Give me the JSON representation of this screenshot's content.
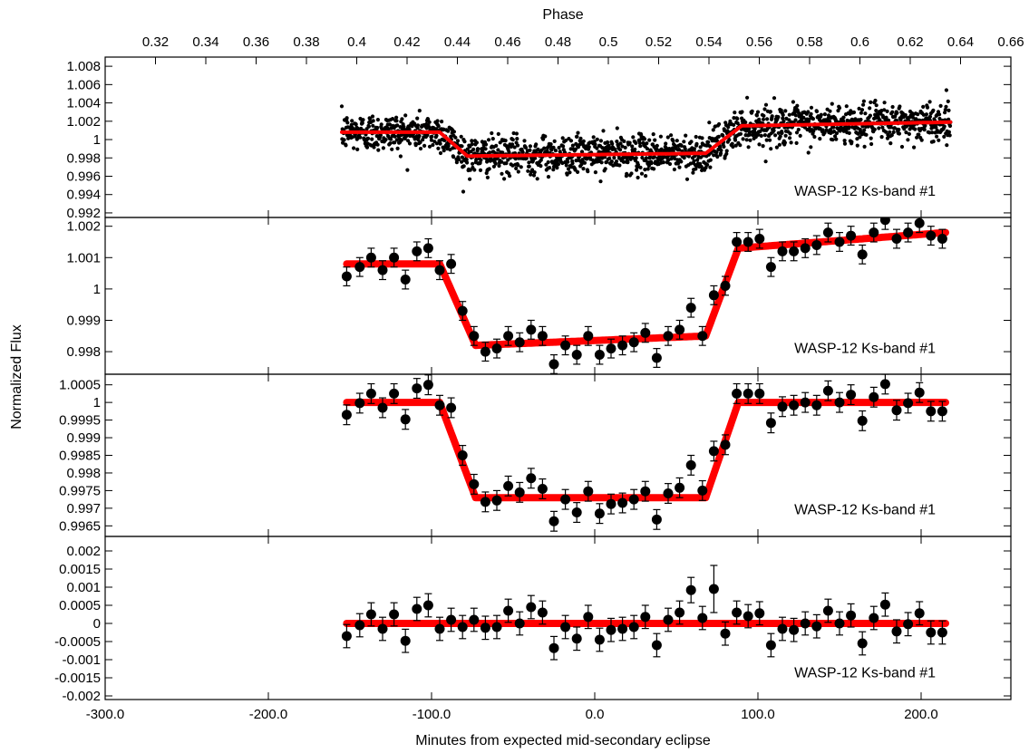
{
  "chart_data": {
    "type": "scatter",
    "x_axis": {
      "label": "Minutes from expected mid-secondary eclipse",
      "range": [
        -300,
        255
      ],
      "ticks": [
        -300,
        -200,
        -100,
        0,
        100,
        200
      ],
      "tick_labels": [
        "-300.0",
        "-200.0",
        "-100.0",
        "0.0",
        "100.0",
        "200.0"
      ]
    },
    "top_axis": {
      "label": "Phase",
      "range": [
        0.3,
        0.66
      ],
      "ticks": [
        0.32,
        0.34,
        0.36,
        0.38,
        0.4,
        0.42,
        0.44,
        0.46,
        0.48,
        0.5,
        0.52,
        0.54,
        0.56,
        0.58,
        0.6,
        0.62,
        0.64,
        0.66
      ],
      "tick_labels": [
        "0.32",
        "0.34",
        "0.36",
        "0.38",
        "0.4",
        "0.42",
        "0.44",
        "0.46",
        "0.48",
        "0.5",
        "0.52",
        "0.54",
        "0.56",
        "0.58",
        "0.6",
        "0.62",
        "0.64",
        "0.66"
      ]
    },
    "ylabel": "Normalized Flux",
    "colors": {
      "model": "#ff0000",
      "points": "#000000"
    },
    "panels": [
      {
        "label": "WASP-12 Ks-band #1",
        "ylim": [
          0.9915,
          1.009
        ],
        "yticks": [
          0.992,
          0.994,
          0.996,
          0.998,
          1.0,
          1.002,
          1.004,
          1.006,
          1.008
        ],
        "ytick_labels": [
          "0.992",
          "0.994",
          "0.996",
          "0.998",
          "1",
          "1.002",
          "1.004",
          "1.006",
          "1.008"
        ],
        "points_kind": "unbinned",
        "n_points": 1800,
        "scatter_sigma": 0.0017,
        "model": {
          "pre_level": 1.0008,
          "bottom_start": 0.9982,
          "bottom_end": 0.9985,
          "post_level": 1.0015,
          "post_end": 1.0019,
          "ingress": [
            -95,
            -78
          ],
          "egress": [
            68,
            90
          ],
          "x_range": [
            -155,
            218
          ]
        }
      },
      {
        "label": "WASP-12 Ks-band #1",
        "ylim": [
          0.99728,
          1.00228
        ],
        "yticks": [
          0.998,
          0.999,
          1.0,
          1.001,
          1.002
        ],
        "ytick_labels": [
          "0.998",
          "0.999",
          "1",
          "1.001",
          "1.002"
        ],
        "points_kind": "binned",
        "points": [
          [
            -152,
            1.0004,
            0.0003
          ],
          [
            -144,
            1.0007,
            0.0003
          ],
          [
            -137,
            1.001,
            0.0003
          ],
          [
            -130,
            1.0006,
            0.0003
          ],
          [
            -123,
            1.001,
            0.0003
          ],
          [
            -116,
            1.0003,
            0.0003
          ],
          [
            -109,
            1.0012,
            0.0003
          ],
          [
            -102,
            1.0013,
            0.0003
          ],
          [
            -95,
            1.0006,
            0.0003
          ],
          [
            -88,
            1.0008,
            0.0003
          ],
          [
            -81,
            0.9993,
            0.0003
          ],
          [
            -74,
            0.9985,
            0.0003
          ],
          [
            -67,
            0.998,
            0.0003
          ],
          [
            -60,
            0.9981,
            0.0003
          ],
          [
            -53,
            0.9985,
            0.0003
          ],
          [
            -46,
            0.9983,
            0.0003
          ],
          [
            -39,
            0.9987,
            0.0003
          ],
          [
            -32,
            0.9985,
            0.0003
          ],
          [
            -25,
            0.9976,
            0.0003
          ],
          [
            -18,
            0.9982,
            0.0003
          ],
          [
            -11,
            0.9979,
            0.0003
          ],
          [
            -4,
            0.9985,
            0.0003
          ],
          [
            3,
            0.9979,
            0.0003
          ],
          [
            10,
            0.9981,
            0.0003
          ],
          [
            17,
            0.9982,
            0.0003
          ],
          [
            24,
            0.9983,
            0.0003
          ],
          [
            31,
            0.9986,
            0.0003
          ],
          [
            38,
            0.9978,
            0.0003
          ],
          [
            45,
            0.9985,
            0.0003
          ],
          [
            52,
            0.9987,
            0.0003
          ],
          [
            59,
            0.9994,
            0.0003
          ],
          [
            66,
            0.9985,
            0.0003
          ],
          [
            73,
            0.9998,
            0.0003
          ],
          [
            80,
            1.0001,
            0.0003
          ],
          [
            87,
            1.0015,
            0.0003
          ],
          [
            94,
            1.0015,
            0.0003
          ],
          [
            101,
            1.0016,
            0.0003
          ],
          [
            108,
            1.0007,
            0.0003
          ],
          [
            115,
            1.0012,
            0.0003
          ],
          [
            122,
            1.0012,
            0.0003
          ],
          [
            129,
            1.0013,
            0.0003
          ],
          [
            136,
            1.0014,
            0.0003
          ],
          [
            143,
            1.0018,
            0.0003
          ],
          [
            150,
            1.0015,
            0.0003
          ],
          [
            157,
            1.0017,
            0.0003
          ],
          [
            164,
            1.0011,
            0.0003
          ],
          [
            171,
            1.0018,
            0.0003
          ],
          [
            178,
            1.0022,
            0.0003
          ],
          [
            185,
            1.0016,
            0.0003
          ],
          [
            192,
            1.0018,
            0.0003
          ],
          [
            199,
            1.0021,
            0.0003
          ],
          [
            206,
            1.0017,
            0.0003
          ],
          [
            213,
            1.0016,
            0.0003
          ]
        ],
        "model": {
          "pre_level": 1.0008,
          "bottom_start": 0.9982,
          "bottom_end": 0.9985,
          "post_level": 1.0013,
          "post_end": 1.0018,
          "ingress": [
            -95,
            -73
          ],
          "egress": [
            68,
            88
          ],
          "x_range": [
            -152,
            215
          ]
        }
      },
      {
        "label": "WASP-12 Ks-band #1",
        "ylim": [
          0.9962,
          1.0008
        ],
        "yticks": [
          0.9965,
          0.997,
          0.9975,
          0.998,
          0.9985,
          0.999,
          0.9995,
          1.0,
          1.0005
        ],
        "ytick_labels": [
          "0.9965",
          "0.997",
          "0.9975",
          "0.998",
          "0.9985",
          "0.999",
          "0.9995",
          "1",
          "1.0005"
        ],
        "points_kind": "binned",
        "points": [
          [
            -152,
            0.99965,
            0.00028
          ],
          [
            -144,
            0.99998,
            0.00028
          ],
          [
            -137,
            1.00025,
            0.00028
          ],
          [
            -130,
            0.99985,
            0.00028
          ],
          [
            -123,
            1.00025,
            0.00028
          ],
          [
            -116,
            0.99952,
            0.00028
          ],
          [
            -109,
            1.0004,
            0.00028
          ],
          [
            -102,
            1.0005,
            0.00028
          ],
          [
            -95,
            0.99992,
            0.00028
          ],
          [
            -88,
            0.99985,
            0.00028
          ],
          [
            -81,
            0.9985,
            0.00028
          ],
          [
            -74,
            0.99768,
            0.00028
          ],
          [
            -67,
            0.99718,
            0.00028
          ],
          [
            -60,
            0.99722,
            0.00028
          ],
          [
            -53,
            0.99763,
            0.00028
          ],
          [
            -46,
            0.99745,
            0.00028
          ],
          [
            -39,
            0.99785,
            0.00028
          ],
          [
            -32,
            0.99755,
            0.00028
          ],
          [
            -25,
            0.99663,
            0.00028
          ],
          [
            -18,
            0.99725,
            0.00028
          ],
          [
            -11,
            0.99688,
            0.00028
          ],
          [
            -4,
            0.99748,
            0.00028
          ],
          [
            3,
            0.99685,
            0.00028
          ],
          [
            10,
            0.99712,
            0.00028
          ],
          [
            17,
            0.99715,
            0.00028
          ],
          [
            24,
            0.99725,
            0.00028
          ],
          [
            31,
            0.99748,
            0.00028
          ],
          [
            38,
            0.99668,
            0.00028
          ],
          [
            45,
            0.99742,
            0.00028
          ],
          [
            52,
            0.99758,
            0.00028
          ],
          [
            59,
            0.99822,
            0.00028
          ],
          [
            66,
            0.9975,
            0.00028
          ],
          [
            73,
            0.99862,
            0.00028
          ],
          [
            80,
            0.9988,
            0.00028
          ],
          [
            87,
            1.00025,
            0.00028
          ],
          [
            94,
            1.00025,
            0.00028
          ],
          [
            101,
            1.00025,
            0.00028
          ],
          [
            108,
            0.99942,
            0.00028
          ],
          [
            115,
            0.99988,
            0.00028
          ],
          [
            122,
            0.99992,
            0.00028
          ],
          [
            129,
            1.0,
            0.00028
          ],
          [
            136,
            0.99992,
            0.00028
          ],
          [
            143,
            1.00033,
            0.00028
          ],
          [
            150,
            1.0,
            0.00028
          ],
          [
            157,
            1.00022,
            0.00028
          ],
          [
            164,
            0.99948,
            0.00028
          ],
          [
            171,
            1.00015,
            0.00028
          ],
          [
            178,
            1.00052,
            0.00028
          ],
          [
            185,
            0.99978,
            0.00028
          ],
          [
            192,
            0.99998,
            0.00028
          ],
          [
            199,
            1.00028,
            0.00028
          ],
          [
            206,
            0.99975,
            0.00028
          ],
          [
            213,
            0.99975,
            0.00028
          ]
        ],
        "model": {
          "pre_level": 1.0,
          "bottom_start": 0.9973,
          "bottom_end": 0.9973,
          "post_level": 1.0,
          "post_end": 1.0,
          "ingress": [
            -95,
            -73
          ],
          "egress": [
            68,
            88
          ],
          "x_range": [
            -152,
            215
          ]
        }
      },
      {
        "label": "WASP-12 Ks-band #1",
        "ylim": [
          -0.0021,
          0.0024
        ],
        "yticks": [
          -0.002,
          -0.0015,
          -0.001,
          -0.0005,
          0.0,
          0.0005,
          0.001,
          0.0015,
          0.002
        ],
        "ytick_labels": [
          "-0.002",
          "-0.0015",
          "-0.001",
          "-0.0005",
          "0",
          "0.0005",
          "0.001",
          "0.0015",
          "0.002"
        ],
        "points_kind": "binned",
        "points": [
          [
            -152,
            -0.00035,
            0.00032
          ],
          [
            -144,
            -5e-05,
            0.00032
          ],
          [
            -137,
            0.00025,
            0.00032
          ],
          [
            -130,
            -0.00015,
            0.00032
          ],
          [
            -123,
            0.00025,
            0.00032
          ],
          [
            -116,
            -0.00048,
            0.00032
          ],
          [
            -109,
            0.0004,
            0.00032
          ],
          [
            -102,
            0.0005,
            0.00032
          ],
          [
            -95,
            -0.00015,
            0.00032
          ],
          [
            -88,
            0.0001,
            0.00032
          ],
          [
            -81,
            -0.0001,
            0.00032
          ],
          [
            -74,
            0.0001,
            0.00032
          ],
          [
            -67,
            -0.00012,
            0.00032
          ],
          [
            -60,
            -0.0001,
            0.00032
          ],
          [
            -53,
            0.00035,
            0.00032
          ],
          [
            -46,
            0.0,
            0.00032
          ],
          [
            -39,
            0.00045,
            0.00032
          ],
          [
            -32,
            0.0003,
            0.00032
          ],
          [
            -25,
            -0.00068,
            0.00032
          ],
          [
            -18,
            -0.0001,
            0.00032
          ],
          [
            -11,
            -0.00042,
            0.00032
          ],
          [
            -4,
            0.00018,
            0.00032
          ],
          [
            3,
            -0.00045,
            0.00032
          ],
          [
            10,
            -0.00018,
            0.00032
          ],
          [
            17,
            -0.00015,
            0.00032
          ],
          [
            24,
            -0.0001,
            0.00032
          ],
          [
            31,
            0.00018,
            0.00032
          ],
          [
            38,
            -0.0006,
            0.00032
          ],
          [
            45,
            0.0001,
            0.00032
          ],
          [
            52,
            0.0003,
            0.00032
          ],
          [
            59,
            0.00092,
            0.00035
          ],
          [
            66,
            0.00015,
            0.00032
          ],
          [
            73,
            0.00095,
            0.00065
          ],
          [
            80,
            -0.00028,
            0.00032
          ],
          [
            87,
            0.0003,
            0.00032
          ],
          [
            94,
            0.0002,
            0.00032
          ],
          [
            101,
            0.00028,
            0.00032
          ],
          [
            108,
            -0.0006,
            0.00032
          ],
          [
            115,
            -0.00015,
            0.00032
          ],
          [
            122,
            -0.00018,
            0.00032
          ],
          [
            129,
            0.0,
            0.00032
          ],
          [
            136,
            -8e-05,
            0.00032
          ],
          [
            143,
            0.00035,
            0.00032
          ],
          [
            150,
            0.0,
            0.00032
          ],
          [
            157,
            0.00022,
            0.00032
          ],
          [
            164,
            -0.00055,
            0.00032
          ],
          [
            171,
            0.00015,
            0.00032
          ],
          [
            178,
            0.00052,
            0.00032
          ],
          [
            185,
            -0.00022,
            0.00032
          ],
          [
            192,
            -2e-05,
            0.00032
          ],
          [
            199,
            0.00028,
            0.00032
          ],
          [
            206,
            -0.00025,
            0.00032
          ],
          [
            213,
            -0.00025,
            0.00032
          ]
        ],
        "model": {
          "pre_level": 0.0,
          "bottom_start": 0.0,
          "bottom_end": 0.0,
          "post_level": 0.0,
          "post_end": 0.0,
          "ingress": [
            -95,
            -73
          ],
          "egress": [
            68,
            88
          ],
          "x_range": [
            -152,
            215
          ]
        }
      }
    ]
  }
}
